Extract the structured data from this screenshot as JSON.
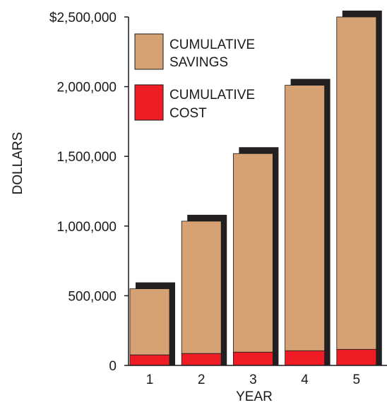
{
  "chart_data": {
    "type": "bar",
    "stacked": true,
    "categories": [
      "1",
      "2",
      "3",
      "4",
      "5"
    ],
    "series": [
      {
        "name": "CUMULATIVE COST",
        "color": "#ee1c25",
        "values": [
          75000,
          85000,
          95000,
          105000,
          115000
        ]
      },
      {
        "name": "CUMULATIVE SAVINGS",
        "color": "#d6a274",
        "values": [
          475000,
          950000,
          1425000,
          1905000,
          2385000
        ]
      }
    ],
    "xlabel": "YEAR",
    "ylabel": "DOLLARS",
    "ylim": [
      0,
      2500000
    ],
    "y_ticks": [
      {
        "value": 0,
        "label": "0"
      },
      {
        "value": 500000,
        "label": "500,000"
      },
      {
        "value": 1000000,
        "label": "1,000,000"
      },
      {
        "value": 1500000,
        "label": "1,500,000"
      },
      {
        "value": 2000000,
        "label": "2,000,000"
      },
      {
        "value": 2500000,
        "label": "$2,500,000"
      }
    ],
    "legend": {
      "placement": "top-left",
      "entries": [
        {
          "line1": "CUMULATIVE",
          "line2": "SAVINGS",
          "color": "#d6a274"
        },
        {
          "line1": "CUMULATIVE",
          "line2": "COST",
          "color": "#ee1c25"
        }
      ]
    },
    "grid": false,
    "bar_style": "3d-shadow",
    "shadow_color": "#231f20"
  }
}
